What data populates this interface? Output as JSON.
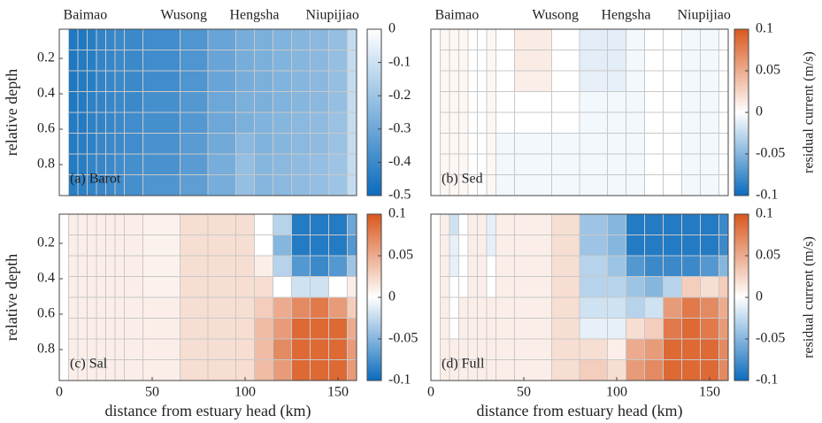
{
  "chart_data": [
    {
      "type": "heatmap",
      "label": "(a) Barot",
      "x_edges": [
        5,
        10,
        15,
        20,
        25,
        30,
        35,
        45,
        65,
        80,
        95,
        105,
        115,
        125,
        135,
        145,
        155,
        160
      ],
      "y_edges": [
        0.035,
        0.1525,
        0.27,
        0.3875,
        0.505,
        0.6225,
        0.74,
        0.8575,
        0.975
      ],
      "values": [
        [
          -0.46,
          -0.46,
          -0.44,
          -0.42,
          -0.41,
          -0.4,
          -0.4,
          -0.39,
          -0.36,
          -0.31,
          -0.28,
          -0.27,
          -0.26,
          -0.25,
          -0.24,
          -0.22,
          -0.12
        ],
        [
          -0.46,
          -0.45,
          -0.44,
          -0.42,
          -0.41,
          -0.4,
          -0.4,
          -0.39,
          -0.36,
          -0.31,
          -0.28,
          -0.27,
          -0.26,
          -0.25,
          -0.24,
          -0.22,
          -0.12
        ],
        [
          -0.46,
          -0.45,
          -0.44,
          -0.42,
          -0.41,
          -0.4,
          -0.4,
          -0.39,
          -0.36,
          -0.31,
          -0.28,
          -0.27,
          -0.26,
          -0.25,
          -0.24,
          -0.22,
          -0.12
        ],
        [
          -0.46,
          -0.45,
          -0.43,
          -0.42,
          -0.41,
          -0.4,
          -0.4,
          -0.38,
          -0.35,
          -0.3,
          -0.27,
          -0.27,
          -0.26,
          -0.25,
          -0.24,
          -0.22,
          -0.12
        ],
        [
          -0.45,
          -0.45,
          -0.43,
          -0.42,
          -0.41,
          -0.4,
          -0.39,
          -0.38,
          -0.35,
          -0.3,
          -0.27,
          -0.26,
          -0.25,
          -0.24,
          -0.23,
          -0.21,
          -0.12
        ],
        [
          -0.45,
          -0.44,
          -0.43,
          -0.41,
          -0.4,
          -0.4,
          -0.39,
          -0.37,
          -0.34,
          -0.29,
          -0.24,
          -0.26,
          -0.25,
          -0.24,
          -0.23,
          -0.21,
          -0.12
        ],
        [
          -0.45,
          -0.44,
          -0.42,
          -0.41,
          -0.4,
          -0.39,
          -0.38,
          -0.37,
          -0.34,
          -0.28,
          -0.22,
          -0.25,
          -0.24,
          -0.23,
          -0.22,
          -0.2,
          -0.12
        ],
        [
          -0.44,
          -0.43,
          -0.42,
          -0.41,
          -0.4,
          -0.39,
          -0.38,
          -0.36,
          -0.33,
          -0.28,
          -0.22,
          -0.25,
          -0.24,
          -0.23,
          -0.22,
          -0.2,
          -0.12
        ]
      ],
      "clim": [
        -0.5,
        0
      ],
      "cticks": [
        0,
        -0.1,
        -0.2,
        -0.3,
        -0.4,
        -0.5
      ],
      "colors": [
        "#0b6cbd",
        "#ffffff"
      ],
      "xlim": [
        0,
        160
      ],
      "xticks": [],
      "ylim": [
        0.035,
        0.975
      ],
      "yticks": [
        0.2,
        0.4,
        0.6,
        0.8
      ],
      "ylabel": "relative depth",
      "annotations": [
        {
          "text": "Baimao",
          "x": 14
        },
        {
          "text": "Wusong",
          "x": 67
        },
        {
          "text": "Hengsha",
          "x": 105
        },
        {
          "text": "Niupijiao",
          "x": 147
        }
      ]
    },
    {
      "type": "heatmap",
      "label": "(b) Sed",
      "x_edges": [
        5,
        10,
        15,
        20,
        25,
        30,
        35,
        45,
        65,
        80,
        95,
        105,
        115,
        125,
        135,
        145,
        155,
        160
      ],
      "y_edges": [
        0.035,
        0.1525,
        0.27,
        0.3875,
        0.505,
        0.6225,
        0.74,
        0.8575,
        0.975
      ],
      "values": [
        [
          0.005,
          0.005,
          0.005,
          0,
          0,
          0.005,
          0,
          0.012,
          0,
          -0.012,
          -0.012,
          -0.005,
          0,
          0,
          -0.005,
          -0.005,
          0
        ],
        [
          0.005,
          0.005,
          0.005,
          0,
          0,
          0.005,
          0,
          0.012,
          0,
          -0.012,
          -0.012,
          -0.005,
          0,
          0,
          -0.005,
          -0.005,
          0
        ],
        [
          0.005,
          0.005,
          0.005,
          0,
          0,
          0.005,
          0,
          0.01,
          0,
          -0.01,
          -0.01,
          -0.005,
          0,
          0,
          -0.005,
          -0.005,
          0
        ],
        [
          0.005,
          0.005,
          0.005,
          0,
          0,
          0.005,
          0,
          0,
          0,
          -0.005,
          -0.005,
          -0.005,
          0,
          0,
          -0.005,
          -0.005,
          0
        ],
        [
          0.005,
          0.005,
          0.005,
          0,
          0,
          0.005,
          0,
          0,
          0,
          -0.005,
          -0.005,
          -0.005,
          0,
          0,
          -0.005,
          -0.005,
          0
        ],
        [
          0.005,
          0.005,
          0.005,
          0,
          0,
          0.005,
          -0.005,
          -0.005,
          -0.005,
          -0.005,
          -0.005,
          -0.005,
          0,
          0,
          -0.005,
          -0.005,
          0
        ],
        [
          0.005,
          0.005,
          0.005,
          0,
          0,
          0.005,
          -0.005,
          -0.005,
          -0.005,
          -0.005,
          -0.005,
          -0.005,
          0,
          0,
          -0.005,
          -0.005,
          0
        ],
        [
          0.005,
          0.005,
          0.005,
          0,
          0,
          0.005,
          -0.005,
          -0.005,
          -0.005,
          -0.005,
          -0.005,
          -0.005,
          0,
          0,
          -0.005,
          -0.005,
          0
        ]
      ],
      "clim": [
        -0.1,
        0.1
      ],
      "cticks": [
        0.1,
        0.05,
        0,
        -0.05,
        -0.1
      ],
      "colors": [
        "#0b6cbd",
        "#ffffff",
        "#d9581e"
      ],
      "clabel": "residual current (m/s)",
      "xlim": [
        0,
        160
      ],
      "xticks": [],
      "ylim": [
        0.035,
        0.975
      ],
      "yticks": [],
      "annotations": [
        {
          "text": "Baimao",
          "x": 14
        },
        {
          "text": "Wusong",
          "x": 67
        },
        {
          "text": "Hengsha",
          "x": 105
        },
        {
          "text": "Niupijiao",
          "x": 147
        }
      ]
    },
    {
      "type": "heatmap",
      "label": "(c) Sal",
      "x_edges": [
        5,
        10,
        15,
        20,
        25,
        30,
        35,
        45,
        65,
        80,
        95,
        105,
        115,
        125,
        135,
        145,
        155,
        160
      ],
      "y_edges": [
        0.035,
        0.1525,
        0.27,
        0.3875,
        0.505,
        0.6225,
        0.74,
        0.8575,
        0.975
      ],
      "values": [
        [
          0.01,
          0.01,
          0.01,
          0.01,
          0.01,
          0.01,
          0.01,
          0.008,
          0.02,
          0.02,
          0.02,
          0,
          -0.03,
          -0.09,
          -0.09,
          -0.09,
          -0.06
        ],
        [
          0.01,
          0.01,
          0.01,
          0.01,
          0.01,
          0.01,
          0.01,
          0.008,
          0.02,
          0.02,
          0.02,
          0,
          -0.05,
          -0.09,
          -0.09,
          -0.09,
          -0.07
        ],
        [
          0.01,
          0.01,
          0.01,
          0.01,
          0.01,
          0.01,
          0.01,
          0.008,
          0.02,
          0.02,
          0.02,
          0.01,
          -0.03,
          -0.07,
          -0.08,
          -0.07,
          -0.04
        ],
        [
          0.01,
          0.01,
          0.01,
          0.01,
          0.01,
          0.01,
          0.01,
          0.008,
          0.02,
          0.02,
          0.02,
          0.02,
          0,
          -0.02,
          -0.02,
          0,
          0.01
        ],
        [
          0.01,
          0.01,
          0.01,
          0.01,
          0.01,
          0.01,
          0.01,
          0.01,
          0.02,
          0.02,
          0.02,
          0.03,
          0.05,
          0.07,
          0.08,
          0.06,
          0.03
        ],
        [
          0.01,
          0.01,
          0.01,
          0.01,
          0.01,
          0.01,
          0.01,
          0.01,
          0.02,
          0.02,
          0.02,
          0.04,
          0.06,
          0.09,
          0.09,
          0.09,
          0.05
        ],
        [
          0.01,
          0.01,
          0.01,
          0.01,
          0.01,
          0.01,
          0.01,
          0.01,
          0.02,
          0.02,
          0.02,
          0.04,
          0.07,
          0.09,
          0.09,
          0.09,
          0.06
        ],
        [
          0.01,
          0.01,
          0.01,
          0.01,
          0.01,
          0.01,
          0.01,
          0.01,
          0.02,
          0.02,
          0.02,
          0.04,
          0.06,
          0.09,
          0.09,
          0.09,
          0.06
        ]
      ],
      "clim": [
        -0.1,
        0.1
      ],
      "cticks": [
        0.1,
        0.05,
        0,
        -0.05,
        -0.1
      ],
      "colors": [
        "#0b6cbd",
        "#ffffff",
        "#d9581e"
      ],
      "xlim": [
        0,
        160
      ],
      "xticks": [
        0,
        50,
        100,
        150
      ],
      "ylim": [
        0.035,
        0.975
      ],
      "yticks": [
        0.2,
        0.4,
        0.6,
        0.8
      ],
      "xlabel": "distance from estuary head (km)",
      "ylabel": "relative depth"
    },
    {
      "type": "heatmap",
      "label": "(d) Full",
      "x_edges": [
        5,
        10,
        15,
        20,
        25,
        30,
        35,
        45,
        65,
        80,
        95,
        105,
        115,
        125,
        135,
        145,
        155,
        160
      ],
      "y_edges": [
        0.035,
        0.1525,
        0.27,
        0.3875,
        0.505,
        0.6225,
        0.74,
        0.8575,
        0.975
      ],
      "values": [
        [
          0.01,
          -0.02,
          0,
          0.01,
          0.01,
          -0.01,
          0.01,
          0.01,
          0.02,
          -0.04,
          -0.05,
          -0.09,
          -0.09,
          -0.09,
          -0.09,
          -0.09,
          -0.08
        ],
        [
          0.01,
          -0.01,
          0,
          0.01,
          0.01,
          -0.01,
          0.01,
          0.01,
          0.02,
          -0.04,
          -0.05,
          -0.09,
          -0.09,
          -0.09,
          -0.09,
          -0.09,
          -0.08
        ],
        [
          0.01,
          -0.01,
          0,
          0.01,
          0.01,
          0,
          0.01,
          0.01,
          0.02,
          -0.03,
          -0.04,
          -0.07,
          -0.08,
          -0.08,
          -0.08,
          -0.07,
          -0.05
        ],
        [
          0.01,
          0,
          0,
          0.01,
          0.01,
          0,
          0.01,
          0.01,
          0.02,
          -0.03,
          -0.03,
          -0.04,
          -0.05,
          -0.03,
          0.03,
          0.02,
          0.03
        ],
        [
          0.01,
          0,
          0.01,
          0.01,
          0.01,
          0.01,
          0.01,
          0.01,
          0.02,
          -0.02,
          -0.02,
          -0.03,
          -0.02,
          0.06,
          0.08,
          0.07,
          0.05
        ],
        [
          0.01,
          0,
          0.01,
          0.01,
          0.01,
          0.01,
          0.01,
          0.01,
          0.02,
          -0.01,
          -0.01,
          0.02,
          0.03,
          0.08,
          0.09,
          0.08,
          0.06
        ],
        [
          0.01,
          0.01,
          0.01,
          0.01,
          0.01,
          0.01,
          0.01,
          0.01,
          0.02,
          0.02,
          0.01,
          0.05,
          0.06,
          0.09,
          0.09,
          0.09,
          0.07
        ],
        [
          0.01,
          0.01,
          0.01,
          0.01,
          0.01,
          0.01,
          0.01,
          0.01,
          0.02,
          0.03,
          0.02,
          0.06,
          0.07,
          0.09,
          0.09,
          0.09,
          0.07
        ]
      ],
      "clim": [
        -0.1,
        0.1
      ],
      "cticks": [
        0.1,
        0.05,
        0,
        -0.05,
        -0.1
      ],
      "colors": [
        "#0b6cbd",
        "#ffffff",
        "#d9581e"
      ],
      "clabel": "residual current (m/s)",
      "xlim": [
        0,
        160
      ],
      "xticks": [
        0,
        50,
        100,
        150
      ],
      "ylim": [
        0.035,
        0.975
      ],
      "yticks": [],
      "xlabel": "distance from estuary head (km)"
    }
  ]
}
